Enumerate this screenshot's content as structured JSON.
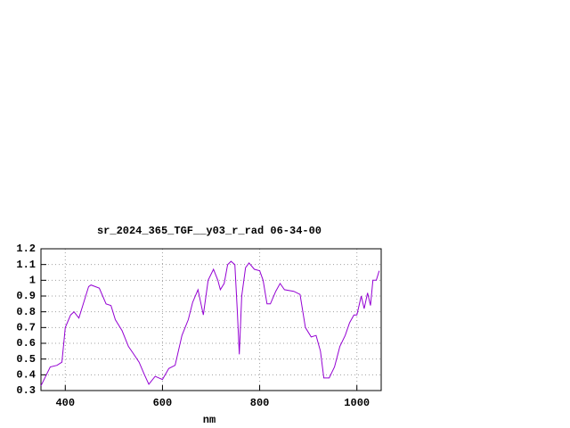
{
  "chart_data": {
    "type": "line",
    "title": "sr_2024_365_TGF__y03_r_rad 06-34-00",
    "x_label": "nm",
    "x": [
      350,
      369,
      383,
      393,
      400,
      411,
      418,
      428,
      448,
      453,
      470,
      484,
      494,
      503,
      517,
      530,
      539,
      552,
      563,
      572,
      585,
      600,
      613,
      626,
      640,
      653,
      662,
      673,
      684,
      694,
      705,
      714,
      719,
      727,
      734,
      741,
      749,
      754,
      758,
      763,
      771,
      778,
      789,
      800,
      807,
      815,
      822,
      833,
      842,
      851,
      870,
      883,
      894,
      906,
      916,
      925,
      932,
      943,
      954,
      965,
      976,
      985,
      994,
      1000,
      1009,
      1015,
      1022,
      1028,
      1033,
      1040,
      1046
    ],
    "series": [
      {
        "color": "#9400d3",
        "values": [
          0.33,
          0.45,
          0.46,
          0.48,
          0.7,
          0.78,
          0.8,
          0.76,
          0.96,
          0.97,
          0.95,
          0.85,
          0.84,
          0.75,
          0.68,
          0.58,
          0.54,
          0.48,
          0.4,
          0.34,
          0.39,
          0.37,
          0.44,
          0.46,
          0.65,
          0.75,
          0.86,
          0.94,
          0.78,
          1.0,
          1.07,
          1.0,
          0.94,
          0.98,
          1.1,
          1.12,
          1.1,
          0.8,
          0.53,
          0.9,
          1.08,
          1.11,
          1.07,
          1.06,
          1.0,
          0.85,
          0.85,
          0.93,
          0.98,
          0.94,
          0.93,
          0.91,
          0.7,
          0.64,
          0.65,
          0.55,
          0.38,
          0.38,
          0.45,
          0.58,
          0.65,
          0.73,
          0.78,
          0.78,
          0.9,
          0.82,
          0.92,
          0.84,
          1.0,
          1.0,
          1.06
        ]
      }
    ],
    "xlim": [
      350,
      1050
    ],
    "xticks": [
      400,
      600,
      800,
      1000
    ],
    "ylim": [
      0.3,
      1.2
    ],
    "yticks": [
      0.3,
      0.4,
      0.5,
      0.6,
      0.7,
      0.8,
      0.9,
      1,
      1.1,
      1.2
    ],
    "grid": true
  }
}
